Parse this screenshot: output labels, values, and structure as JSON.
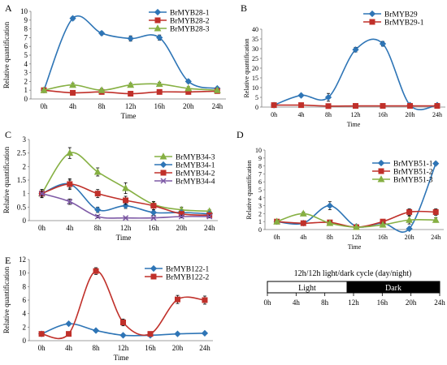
{
  "chart_data": [
    {
      "panel_label": "A",
      "type": "line",
      "x": [
        "0h",
        "4h",
        "8h",
        "12h",
        "16h",
        "20h",
        "24h"
      ],
      "y_ticks": [
        "0",
        "1",
        "2",
        "3",
        "4",
        "5",
        "6",
        "7",
        "8",
        "9",
        "10"
      ],
      "ylim": [
        0,
        10
      ],
      "xlabel": "Time",
      "ylabel": "Relative quantification",
      "legend_position": "top-right",
      "series": [
        {
          "name": "BrMYB28-1",
          "color": "#2E75B6",
          "marker": "diamond",
          "values": [
            1.0,
            9.2,
            7.5,
            6.9,
            7.0,
            2.0,
            1.2
          ],
          "errors": [
            0.1,
            0.2,
            0.2,
            0.3,
            0.3,
            0.2,
            0.1
          ]
        },
        {
          "name": "BrMYB28-2",
          "color": "#C0302A",
          "marker": "square",
          "values": [
            1.0,
            0.7,
            0.8,
            0.6,
            0.8,
            0.8,
            0.9
          ],
          "errors": [
            0.1,
            0.1,
            0.1,
            0.1,
            0.1,
            0.1,
            0.1
          ]
        },
        {
          "name": "BrMYB28-3",
          "color": "#86B043",
          "marker": "triangle",
          "values": [
            1.0,
            1.6,
            1.0,
            1.6,
            1.7,
            1.2,
            1.0
          ],
          "errors": [
            0.1,
            0.2,
            0.2,
            0.2,
            0.2,
            0.2,
            0.1
          ]
        }
      ]
    },
    {
      "panel_label": "B",
      "type": "line",
      "x": [
        "0h",
        "4h",
        "8h",
        "12h",
        "16h",
        "20h",
        "24h"
      ],
      "y_ticks": [
        "0",
        "5",
        "10",
        "15",
        "20",
        "25",
        "30",
        "35",
        "40"
      ],
      "ylim": [
        0,
        40
      ],
      "xlabel": "Time",
      "ylabel": "Relative quantification",
      "legend_position": "top-right",
      "series": [
        {
          "name": "BrMYB29",
          "color": "#2E75B6",
          "marker": "diamond",
          "values": [
            1.0,
            6.0,
            5.0,
            29.5,
            32.5,
            1.0,
            1.0
          ],
          "errors": [
            0.3,
            0.6,
            2.0,
            1.2,
            1.2,
            0.2,
            0.2
          ]
        },
        {
          "name": "BrMYB29-1",
          "color": "#C0302A",
          "marker": "square",
          "values": [
            1.0,
            1.0,
            0.5,
            0.6,
            0.6,
            0.6,
            0.6
          ],
          "errors": [
            0.2,
            0.2,
            0.1,
            0.1,
            0.1,
            0.1,
            0.1
          ]
        }
      ]
    },
    {
      "panel_label": "C",
      "type": "line",
      "x": [
        "0h",
        "4h",
        "8h",
        "12h",
        "16h",
        "20h",
        "24h"
      ],
      "y_ticks": [
        "0",
        "0.5",
        "1",
        "1.5",
        "2",
        "2.5",
        "3"
      ],
      "ylim": [
        0,
        3
      ],
      "xlabel": "Time",
      "ylabel": "Relative quantification",
      "legend_position": "top-right",
      "series": [
        {
          "name": "BrMYB34-3",
          "color": "#86B043",
          "marker": "triangle",
          "values": [
            1.0,
            2.5,
            1.8,
            1.2,
            0.6,
            0.4,
            0.35
          ],
          "errors": [
            0.1,
            0.2,
            0.15,
            0.2,
            0.1,
            0.1,
            0.05
          ]
        },
        {
          "name": "BrMYB34-1",
          "color": "#2E75B6",
          "marker": "diamond",
          "values": [
            1.0,
            1.35,
            0.4,
            0.55,
            0.3,
            0.3,
            0.25
          ],
          "errors": [
            0.1,
            0.2,
            0.1,
            0.1,
            0.1,
            0.05,
            0.05
          ]
        },
        {
          "name": "BrMYB34-2",
          "color": "#C0302A",
          "marker": "square",
          "values": [
            1.0,
            1.35,
            1.0,
            0.75,
            0.55,
            0.25,
            0.2
          ],
          "errors": [
            0.15,
            0.15,
            0.15,
            0.15,
            0.15,
            0.05,
            0.05
          ]
        },
        {
          "name": "BrMYB34-4",
          "color": "#7E5AA6",
          "marker": "cross",
          "values": [
            1.0,
            0.7,
            0.15,
            0.1,
            0.1,
            0.15,
            0.15
          ],
          "errors": [
            0.15,
            0.1,
            0.05,
            0.03,
            0.03,
            0.05,
            0.05
          ]
        }
      ]
    },
    {
      "panel_label": "D",
      "type": "line",
      "x": [
        "0h",
        "4h",
        "8h",
        "12h",
        "16h",
        "20h",
        "24h"
      ],
      "y_ticks": [
        "0",
        "1",
        "2",
        "3",
        "4",
        "5",
        "6",
        "7",
        "8",
        "9",
        "10"
      ],
      "ylim": [
        0,
        10
      ],
      "xlabel": "Time",
      "ylabel": "Relative quantification",
      "legend_position": "top-right",
      "series": [
        {
          "name": "BrMYB51-1",
          "color": "#2E75B6",
          "marker": "diamond",
          "values": [
            1.0,
            0.8,
            3.0,
            0.4,
            0.8,
            0.1,
            8.3
          ],
          "errors": [
            0.1,
            0.1,
            0.5,
            0.1,
            0.2,
            0.1,
            0.2
          ]
        },
        {
          "name": "BrMYB51-2",
          "color": "#C0302A",
          "marker": "square",
          "values": [
            1.0,
            0.8,
            0.9,
            0.3,
            1.0,
            2.2,
            2.2
          ],
          "errors": [
            0.1,
            0.1,
            0.2,
            0.1,
            0.2,
            0.4,
            0.4
          ]
        },
        {
          "name": "BrMYB51-3",
          "color": "#86B043",
          "marker": "triangle",
          "values": [
            1.0,
            2.0,
            0.8,
            0.3,
            0.6,
            1.2,
            1.2
          ],
          "errors": [
            0.1,
            0.2,
            0.2,
            0.1,
            0.2,
            0.5,
            0.3
          ]
        }
      ]
    },
    {
      "panel_label": "E",
      "type": "line",
      "x": [
        "0h",
        "4h",
        "8h",
        "12h",
        "16h",
        "20h",
        "24h"
      ],
      "y_ticks": [
        "0",
        "2",
        "4",
        "6",
        "8",
        "10",
        "12"
      ],
      "ylim": [
        0,
        12
      ],
      "xlabel": "Time",
      "ylabel": "Relative quantification",
      "legend_position": "top-right",
      "series": [
        {
          "name": "BrMYB122-1",
          "color": "#2E75B6",
          "marker": "diamond",
          "values": [
            1.0,
            2.5,
            1.5,
            0.8,
            0.8,
            1.0,
            1.1
          ],
          "errors": [
            0.2,
            0.2,
            0.2,
            0.1,
            0.1,
            0.1,
            0.1
          ]
        },
        {
          "name": "BrMYB122-2",
          "color": "#C0302A",
          "marker": "square",
          "values": [
            1.0,
            1.0,
            10.3,
            2.7,
            1.0,
            6.1,
            6.0
          ],
          "errors": [
            0.2,
            0.2,
            0.5,
            0.5,
            0.3,
            0.6,
            0.6
          ]
        }
      ]
    }
  ],
  "cycle": {
    "title": "12h/12h light/dark cycle (day/night)",
    "light_label": "Light",
    "dark_label": "Dark",
    "ticks": [
      "0h",
      "4h",
      "8h",
      "12h",
      "16h",
      "20h",
      "24h"
    ]
  }
}
